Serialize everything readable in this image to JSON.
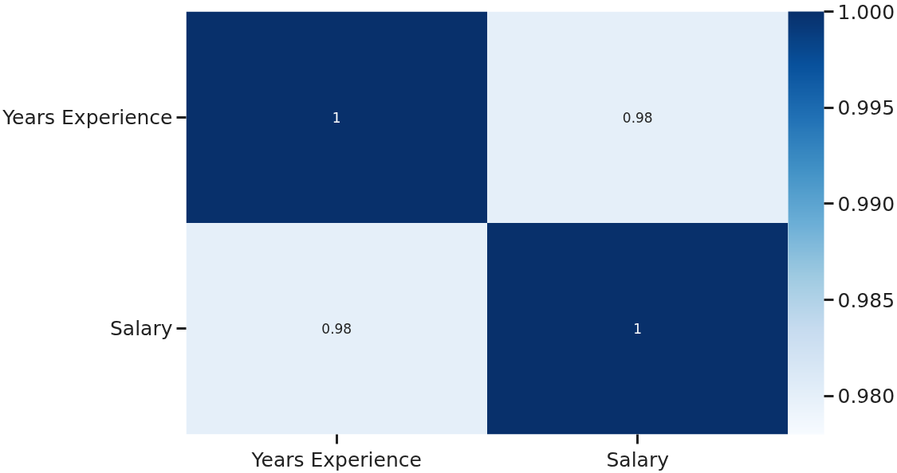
{
  "chart_data": {
    "type": "heatmap",
    "categories": [
      "Years Experience",
      "Salary"
    ],
    "y_categories": [
      "Years Experience",
      "Salary"
    ],
    "cells": [
      [
        1,
        0.98
      ],
      [
        0.98,
        1
      ]
    ],
    "data_labels": true,
    "clim": [
      0.978,
      1.0
    ],
    "cticks": [
      {
        "value": 0.98,
        "label": "0.980"
      },
      {
        "value": 0.985,
        "label": "0.985"
      },
      {
        "value": 0.99,
        "label": "0.990"
      },
      {
        "value": 0.995,
        "label": "0.995"
      },
      {
        "value": 1.0,
        "label": "1.000"
      }
    ]
  }
}
